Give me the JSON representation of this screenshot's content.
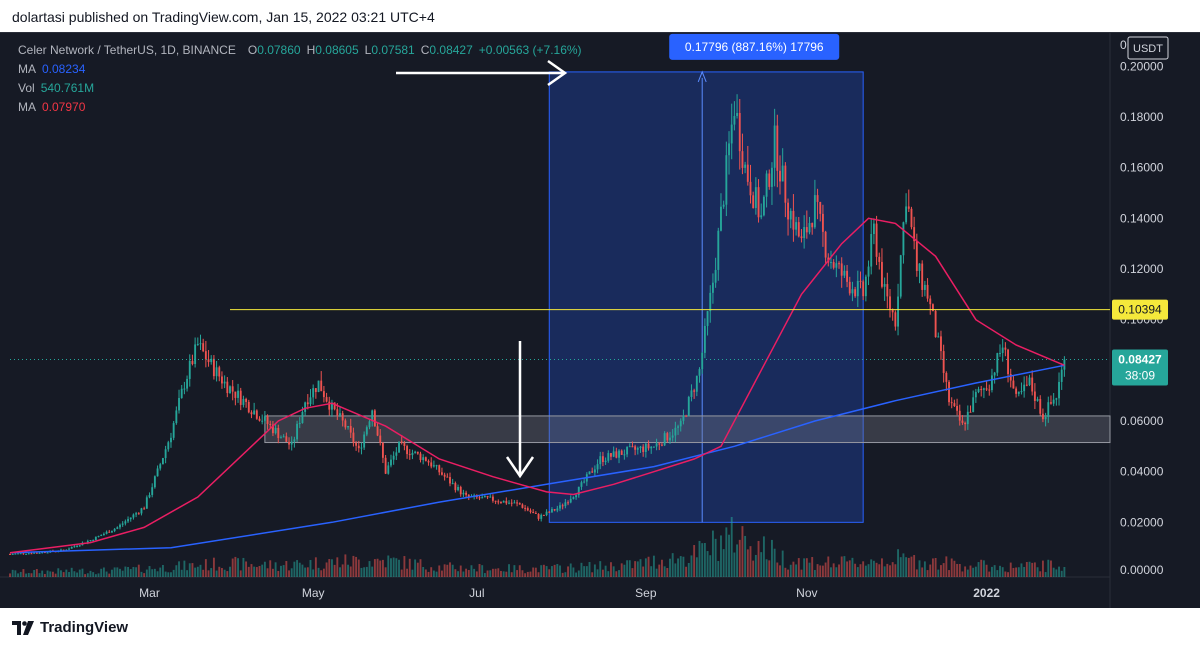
{
  "header": {
    "publisher": "dolartasi published on TradingView.com, Jan 15, 2022 03:21 UTC+4"
  },
  "legend": {
    "symbol": "Celer Network / TetherUS, 1D, BINANCE",
    "o_label": "O",
    "o": "0.07860",
    "h_label": "H",
    "h": "0.08605",
    "l_label": "L",
    "l": "0.07581",
    "c_label": "C",
    "c": "0.08427",
    "change": "+0.00563 (+7.16%)",
    "ma1_label": "MA",
    "ma1": "0.08234",
    "vol_label": "Vol",
    "vol": "540.761M",
    "ma2_label": "MA",
    "ma2": "0.07970"
  },
  "footer": {
    "brand": "TradingView"
  },
  "colors": {
    "up": "#26a69a",
    "down": "#ef5350",
    "ma_long": "#2962ff",
    "ma_short": "#e91e63",
    "level": "#f5e83b",
    "range_box": "#1e3a8a",
    "bg": "#161a25"
  },
  "chart_data": {
    "type": "candlestick",
    "currency_label": "USDT",
    "ylim": [
      0,
      0.21
    ],
    "y_ticks": [
      "0.02000",
      "0.04000",
      "0.06000",
      "0.08000",
      "0.10000",
      "0.12000",
      "0.14000",
      "0.16000",
      "0.18000",
      "0.20000"
    ],
    "y_ticks_values": [
      0.02,
      0.04,
      0.06,
      0.08,
      0.1,
      0.12,
      0.14,
      0.16,
      0.18,
      0.2
    ],
    "y_zero_label": "0.00000",
    "y_top_label": "0",
    "x_labels": [
      "Mar",
      "May",
      "Jul",
      "Sep",
      "Nov",
      "2022"
    ],
    "x_labels_days": [
      52,
      113,
      174,
      237,
      297,
      364
    ],
    "price_points": [
      [
        0,
        0.0075
      ],
      [
        10,
        0.008
      ],
      [
        20,
        0.009
      ],
      [
        30,
        0.013
      ],
      [
        40,
        0.018
      ],
      [
        50,
        0.026
      ],
      [
        55,
        0.04
      ],
      [
        60,
        0.055
      ],
      [
        65,
        0.075
      ],
      [
        70,
        0.09
      ],
      [
        75,
        0.082
      ],
      [
        80,
        0.075
      ],
      [
        90,
        0.065
      ],
      [
        100,
        0.055
      ],
      [
        105,
        0.05
      ],
      [
        110,
        0.068
      ],
      [
        115,
        0.075
      ],
      [
        120,
        0.065
      ],
      [
        125,
        0.058
      ],
      [
        130,
        0.048
      ],
      [
        135,
        0.065
      ],
      [
        140,
        0.04
      ],
      [
        145,
        0.05
      ],
      [
        155,
        0.045
      ],
      [
        162,
        0.038
      ],
      [
        170,
        0.03
      ],
      [
        180,
        0.029
      ],
      [
        190,
        0.027
      ],
      [
        197,
        0.022
      ],
      [
        205,
        0.026
      ],
      [
        212,
        0.033
      ],
      [
        220,
        0.045
      ],
      [
        230,
        0.048
      ],
      [
        240,
        0.05
      ],
      [
        250,
        0.058
      ],
      [
        257,
        0.08
      ],
      [
        262,
        0.115
      ],
      [
        266,
        0.15
      ],
      [
        270,
        0.185
      ],
      [
        274,
        0.16
      ],
      [
        280,
        0.14
      ],
      [
        285,
        0.17
      ],
      [
        290,
        0.145
      ],
      [
        295,
        0.13
      ],
      [
        300,
        0.145
      ],
      [
        305,
        0.125
      ],
      [
        312,
        0.115
      ],
      [
        318,
        0.11
      ],
      [
        322,
        0.135
      ],
      [
        326,
        0.11
      ],
      [
        330,
        0.1
      ],
      [
        334,
        0.15
      ],
      [
        338,
        0.12
      ],
      [
        342,
        0.11
      ],
      [
        346,
        0.09
      ],
      [
        350,
        0.068
      ],
      [
        355,
        0.058
      ],
      [
        360,
        0.07
      ],
      [
        365,
        0.075
      ],
      [
        370,
        0.09
      ],
      [
        375,
        0.068
      ],
      [
        380,
        0.075
      ],
      [
        385,
        0.062
      ],
      [
        390,
        0.07
      ],
      [
        393,
        0.084
      ]
    ],
    "ma_long_points": [
      [
        0,
        0.008
      ],
      [
        60,
        0.01
      ],
      [
        120,
        0.02
      ],
      [
        160,
        0.028
      ],
      [
        200,
        0.035
      ],
      [
        240,
        0.042
      ],
      [
        270,
        0.05
      ],
      [
        300,
        0.06
      ],
      [
        330,
        0.068
      ],
      [
        360,
        0.075
      ],
      [
        393,
        0.082
      ]
    ],
    "ma_short_points": [
      [
        0,
        0.008
      ],
      [
        30,
        0.012
      ],
      [
        50,
        0.018
      ],
      [
        70,
        0.03
      ],
      [
        90,
        0.05
      ],
      [
        100,
        0.06
      ],
      [
        110,
        0.065
      ],
      [
        120,
        0.067
      ],
      [
        140,
        0.058
      ],
      [
        160,
        0.045
      ],
      [
        180,
        0.038
      ],
      [
        200,
        0.032
      ],
      [
        210,
        0.031
      ],
      [
        225,
        0.035
      ],
      [
        240,
        0.04
      ],
      [
        255,
        0.045
      ],
      [
        265,
        0.05
      ],
      [
        280,
        0.08
      ],
      [
        295,
        0.11
      ],
      [
        310,
        0.13
      ],
      [
        320,
        0.14
      ],
      [
        330,
        0.138
      ],
      [
        345,
        0.125
      ],
      [
        360,
        0.1
      ],
      [
        375,
        0.09
      ],
      [
        393,
        0.082
      ]
    ],
    "volume_points": [
      [
        0,
        0.3
      ],
      [
        40,
        0.4
      ],
      [
        60,
        0.6
      ],
      [
        80,
        0.8
      ],
      [
        100,
        0.7
      ],
      [
        120,
        0.9
      ],
      [
        140,
        1.0
      ],
      [
        160,
        0.6
      ],
      [
        180,
        0.5
      ],
      [
        200,
        0.5
      ],
      [
        230,
        0.7
      ],
      [
        255,
        1.3
      ],
      [
        270,
        2.6
      ],
      [
        290,
        1.0
      ],
      [
        310,
        0.8
      ],
      [
        330,
        1.1
      ],
      [
        350,
        0.8
      ],
      [
        370,
        0.6
      ],
      [
        393,
        0.7
      ]
    ],
    "day_range": [
      0,
      410
    ],
    "range_box": {
      "start_day": 201,
      "end_day": 318,
      "low": 0.02,
      "high": 0.1978
    },
    "range_label": "0.17796 (887.16%) 17796",
    "support_zone": [
      0.0515,
      0.062
    ],
    "resistance_level": 0.10394,
    "resistance_label": "0.10394",
    "resistance_start_day": 82,
    "last_price_label": "0.08427",
    "countdown_label": "38:09",
    "last_price": 0.08427
  }
}
